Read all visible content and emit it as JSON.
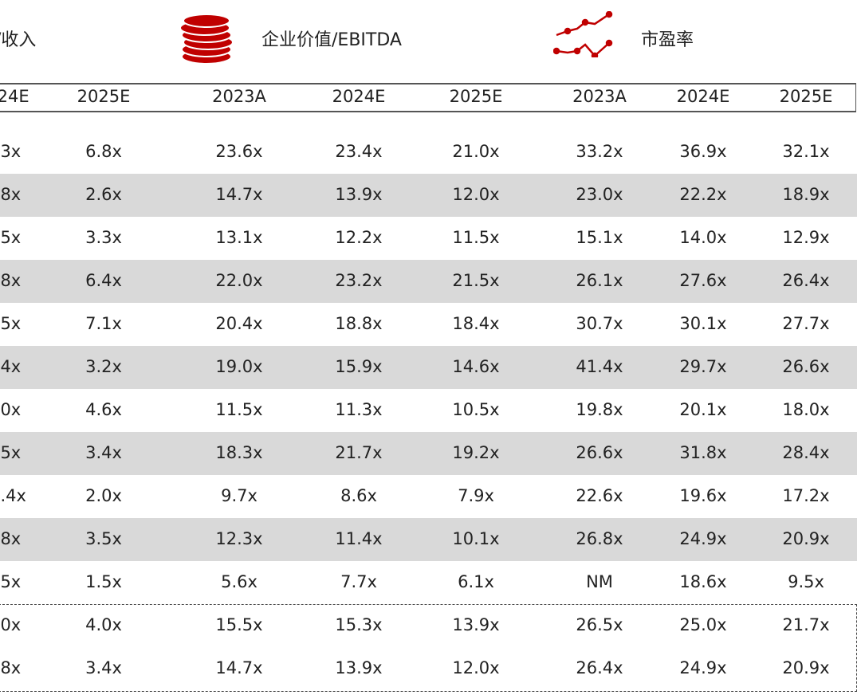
{
  "sections": [
    {
      "label": "/收入"
    },
    {
      "label": "企业价值/EBITDA",
      "icon": "coin-stack-icon"
    },
    {
      "label": "市盈率",
      "icon": "line-chart-icon"
    }
  ],
  "colors": {
    "accent": "#c00000",
    "stripe": "#d9d9d9"
  },
  "header": [
    "024E",
    "2025E",
    "2023A",
    "2024E",
    "2025E",
    "2023A",
    "2024E",
    "2025E"
  ],
  "rows": [
    [
      ".3x",
      "6.8x",
      "23.6x",
      "23.4x",
      "21.0x",
      "33.2x",
      "36.9x",
      "32.1x"
    ],
    [
      ".8x",
      "2.6x",
      "14.7x",
      "13.9x",
      "12.0x",
      "23.0x",
      "22.2x",
      "18.9x"
    ],
    [
      ".5x",
      "3.3x",
      "13.1x",
      "12.2x",
      "11.5x",
      "15.1x",
      "14.0x",
      "12.9x"
    ],
    [
      ".8x",
      "6.4x",
      "22.0x",
      "23.2x",
      "21.5x",
      "26.1x",
      "27.6x",
      "26.4x"
    ],
    [
      ".5x",
      "7.1x",
      "20.4x",
      "18.8x",
      "18.4x",
      "30.7x",
      "30.1x",
      "27.7x"
    ],
    [
      ".4x",
      "3.2x",
      "19.0x",
      "15.9x",
      "14.6x",
      "41.4x",
      "29.7x",
      "26.6x"
    ],
    [
      ".0x",
      "4.6x",
      "11.5x",
      "11.3x",
      "10.5x",
      "19.8x",
      "20.1x",
      "18.0x"
    ],
    [
      ".5x",
      "3.4x",
      "18.3x",
      "21.7x",
      "19.2x",
      "26.6x",
      "31.8x",
      "28.4x"
    ],
    [
      "1.4x",
      "2.0x",
      "9.7x",
      "8.6x",
      "7.9x",
      "22.6x",
      "19.6x",
      "17.2x"
    ],
    [
      ".8x",
      "3.5x",
      "12.3x",
      "11.4x",
      "10.1x",
      "26.8x",
      "24.9x",
      "20.9x"
    ],
    [
      ".5x",
      "1.5x",
      "5.6x",
      "7.7x",
      "6.1x",
      "NM",
      "18.6x",
      "9.5x"
    ],
    [
      ".0x",
      "4.0x",
      "15.5x",
      "15.3x",
      "13.9x",
      "26.5x",
      "25.0x",
      "21.7x"
    ],
    [
      ".8x",
      "3.4x",
      "14.7x",
      "13.9x",
      "12.0x",
      "26.4x",
      "24.9x",
      "20.9x"
    ]
  ]
}
